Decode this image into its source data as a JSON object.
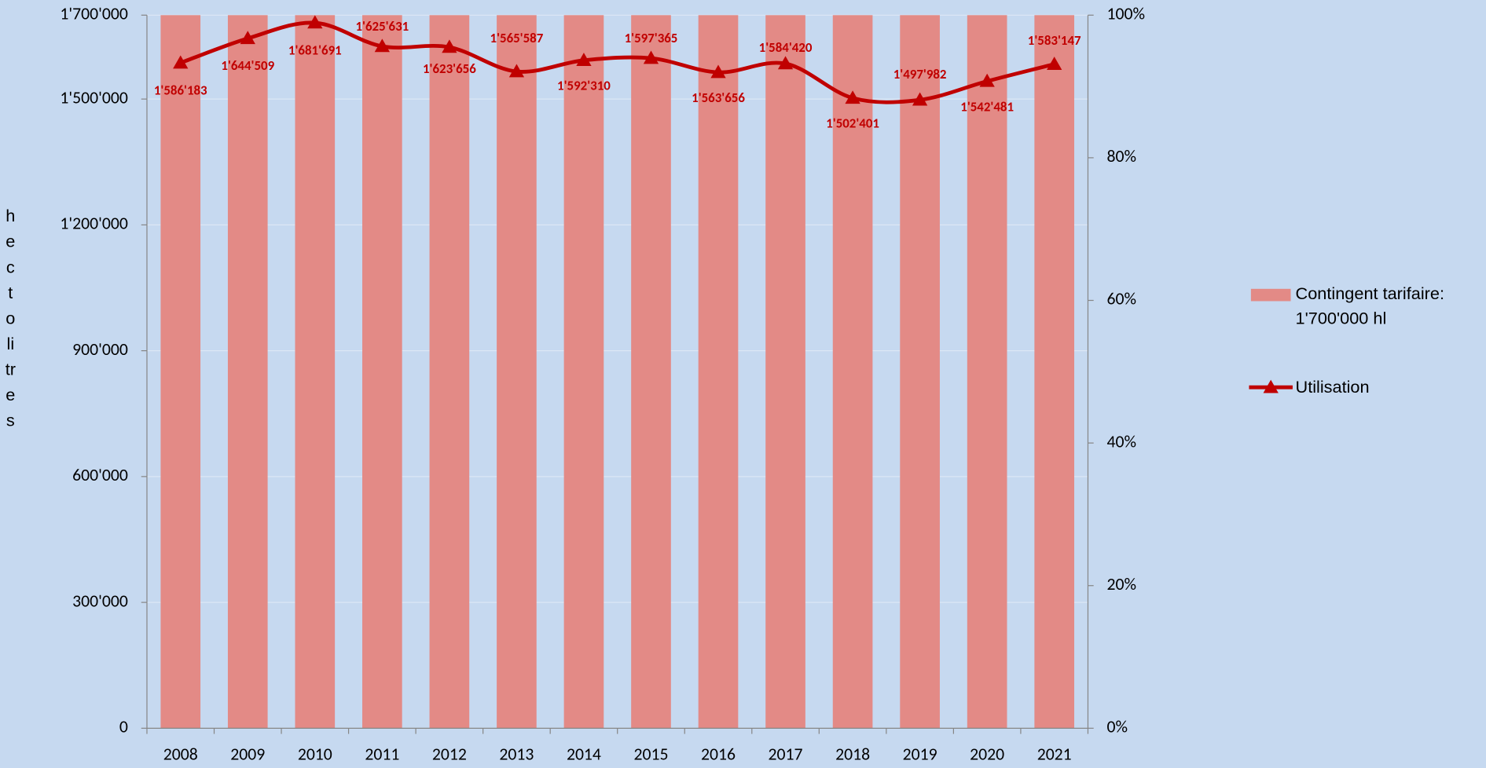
{
  "chart_data": {
    "type": "bar-line",
    "y_label": "hectolitres",
    "categories": [
      "2008",
      "2009",
      "2010",
      "2011",
      "2012",
      "2013",
      "2014",
      "2015",
      "2016",
      "2017",
      "2018",
      "2019",
      "2020",
      "2021"
    ],
    "series": [
      {
        "name": "Contingent tarifaire: 1'700'000 hl",
        "type": "bar",
        "color": "#e38a86",
        "values": [
          1700000,
          1700000,
          1700000,
          1700000,
          1700000,
          1700000,
          1700000,
          1700000,
          1700000,
          1700000,
          1700000,
          1700000,
          1700000,
          1700000
        ]
      },
      {
        "name": "Utilisation",
        "type": "line",
        "color": "#c00000",
        "values": [
          1586183,
          1644509,
          1681691,
          1625631,
          1623656,
          1565587,
          1592310,
          1597365,
          1563656,
          1584420,
          1502401,
          1497982,
          1542481,
          1583147
        ],
        "value_labels": [
          "1'586'183",
          "1'644'509",
          "1'681'691",
          "1'625'631",
          "1'623'656",
          "1'565'587",
          "1'592'310",
          "1'597'365",
          "1'563'656",
          "1'584'420",
          "1'502'401",
          "1'497'982",
          "1'542'481",
          "1'583'147"
        ]
      }
    ],
    "ylim": [
      0,
      1700000
    ],
    "yticks": [
      {
        "value": 0,
        "label": "0"
      },
      {
        "value": 300000,
        "label": "300'000"
      },
      {
        "value": 600000,
        "label": "600'000"
      },
      {
        "value": 900000,
        "label": "900'000"
      },
      {
        "value": 1200000,
        "label": "1'200'000"
      },
      {
        "value": 1500000,
        "label": "1'500'000"
      },
      {
        "value": 1700000,
        "label": "1'700'000"
      }
    ],
    "y2lim": [
      0,
      100
    ],
    "y2ticks": [
      {
        "value": 0,
        "label": "0%"
      },
      {
        "value": 20,
        "label": "20%"
      },
      {
        "value": 40,
        "label": "40%"
      },
      {
        "value": 60,
        "label": "60%"
      },
      {
        "value": 80,
        "label": "80%"
      },
      {
        "value": 100,
        "label": "100%"
      }
    ],
    "grid": true,
    "legend": "right"
  }
}
